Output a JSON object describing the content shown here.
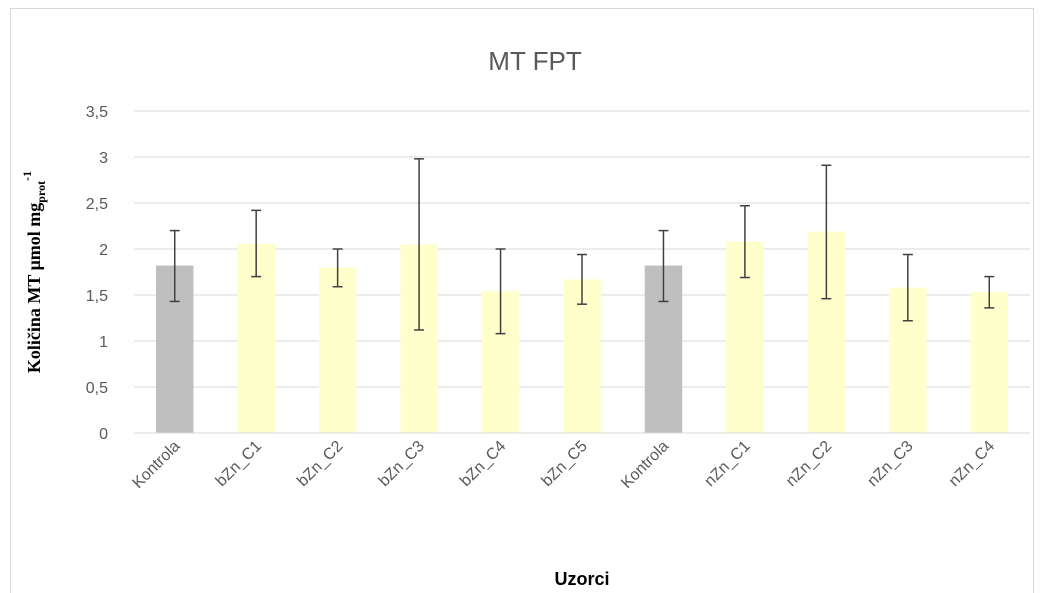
{
  "chart_data": {
    "type": "bar",
    "title": "MT FPT",
    "xlabel": "Uzorci",
    "ylabel": {
      "main": "Količina MT μmol mg",
      "subscript": "prot",
      "superscript": "-1"
    },
    "ylim": [
      0,
      3.5
    ],
    "yticks": [
      "0",
      "0,5",
      "1",
      "1,5",
      "2",
      "2,5",
      "3",
      "3,5"
    ],
    "grid": true,
    "categories": [
      "Kontrola",
      "bZn_C1",
      "bZn_C2",
      "bZn_C3",
      "bZn_C4",
      "bZn_C5",
      "Kontrola",
      "nZn_C1",
      "nZn_C2",
      "nZn_C3",
      "nZn_C4"
    ],
    "values": [
      1.82,
      2.06,
      1.8,
      2.05,
      1.54,
      1.67,
      1.82,
      2.08,
      2.19,
      1.58,
      1.53
    ],
    "error_low": [
      1.43,
      1.7,
      1.59,
      1.12,
      1.08,
      1.4,
      1.43,
      1.69,
      1.46,
      1.22,
      1.36
    ],
    "error_high": [
      2.2,
      2.42,
      2.0,
      2.98,
      2.0,
      1.94,
      2.2,
      2.47,
      2.91,
      1.94,
      1.7
    ],
    "colors": {
      "control": "#bfbfbf",
      "treated": "#ffffcc",
      "grid": "#d9d9d9",
      "error_bar": "#404040",
      "bar_color_key": [
        "control",
        "treated",
        "treated",
        "treated",
        "treated",
        "treated",
        "control",
        "treated",
        "treated",
        "treated",
        "treated"
      ]
    }
  }
}
